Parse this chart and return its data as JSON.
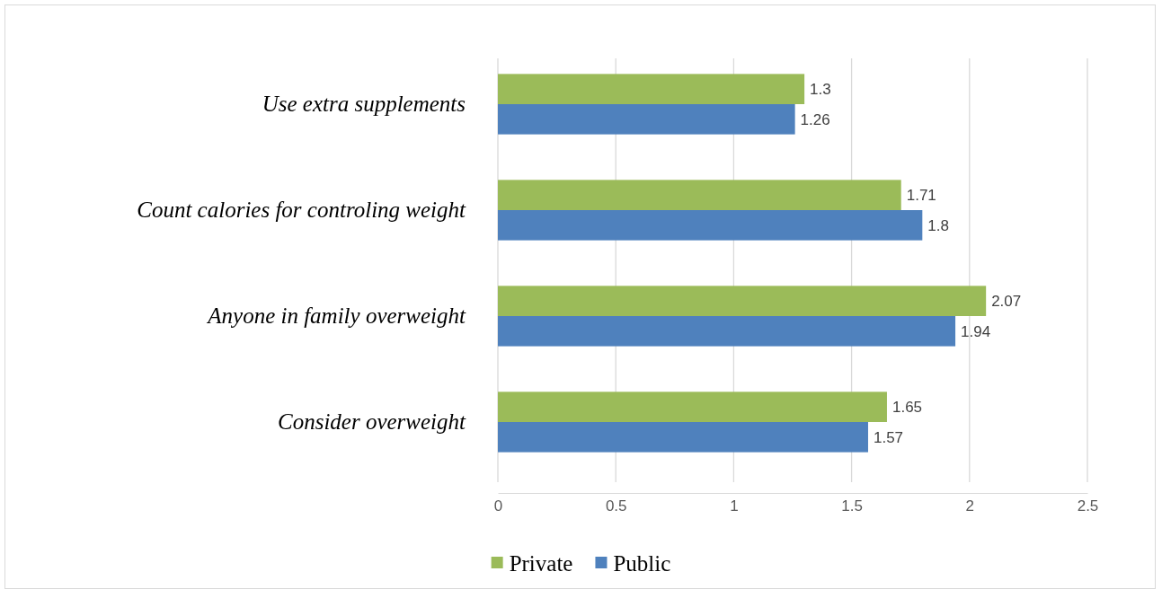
{
  "chart_data": {
    "type": "bar",
    "orientation": "horizontal",
    "categories": [
      "Use extra supplements",
      "Count calories for controling weight",
      "Anyone in family overweight",
      "Consider overweight"
    ],
    "series": [
      {
        "name": "Private",
        "color": "#9bbb59",
        "values": [
          1.3,
          1.71,
          2.07,
          1.65
        ]
      },
      {
        "name": "Public",
        "color": "#4f81bd",
        "values": [
          1.26,
          1.8,
          1.94,
          1.57
        ]
      }
    ],
    "xlim": [
      0,
      2.5
    ],
    "xticks": [
      0,
      0.5,
      1,
      1.5,
      2,
      2.5
    ],
    "grid": "x",
    "legend": "bottom",
    "data_labels": true
  }
}
